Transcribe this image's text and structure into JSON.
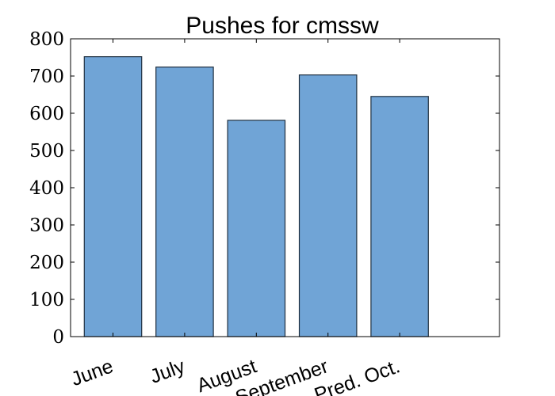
{
  "chart_data": {
    "type": "bar",
    "title": "Pushes for cmssw",
    "xlabel": "",
    "ylabel": "",
    "categories": [
      "June",
      "July",
      "August",
      "September",
      "Pred. Oct."
    ],
    "values": [
      752,
      724,
      581,
      703,
      645
    ],
    "ylim": [
      0,
      800
    ],
    "yticks": [
      "0",
      "100",
      "200",
      "300",
      "400",
      "500",
      "600",
      "700",
      "800"
    ],
    "bar_color": "#70a4d6",
    "bar_edge_color": "#1f2f3f",
    "grid": false,
    "legend": "none"
  }
}
